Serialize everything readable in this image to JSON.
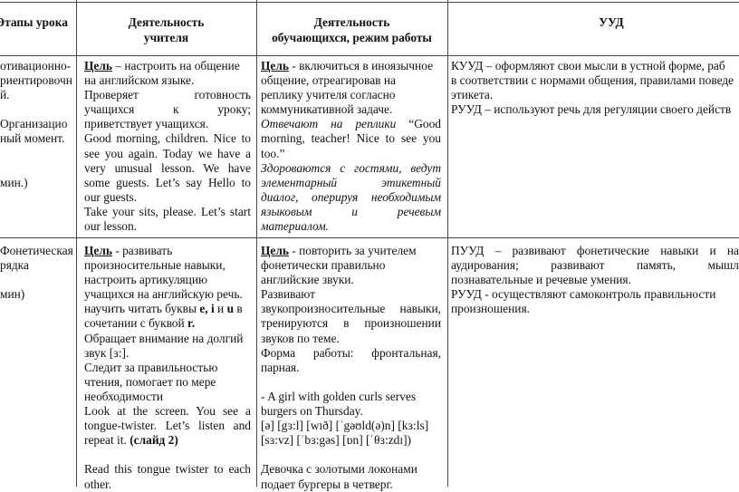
{
  "header": {
    "stage": "Этапы урока",
    "teacher": [
      "Деятельность",
      "учителя"
    ],
    "students": [
      "Деятельность",
      "обучающихся, режим работы"
    ],
    "uud": "УУД"
  },
  "rows": [
    {
      "stage": [
        {
          "r": [
            {
              "t": "отивационно-"
            }
          ]
        },
        {
          "r": [
            {
              "t": "риентировочн"
            }
          ]
        },
        {
          "r": [
            {
              "t": "й."
            }
          ]
        },
        {
          "r": [
            {
              "t": ""
            }
          ]
        },
        {
          "r": [
            {
              "t": " Организацио"
            }
          ]
        },
        {
          "r": [
            {
              "t": "ный момент."
            }
          ]
        },
        {
          "r": [
            {
              "t": ""
            }
          ]
        },
        {
          "r": [
            {
              "t": ""
            }
          ]
        },
        {
          "r": [
            {
              "t": " мин.)"
            }
          ]
        }
      ],
      "teacher": [
        {
          "r": [
            {
              "t": "Цель",
              "s": "bu"
            },
            {
              "t": " – настроить на общение"
            }
          ]
        },
        {
          "r": [
            {
              "t": "на английском языке."
            }
          ]
        },
        {
          "r": [
            {
              "t": "Проверяет готовность"
            }
          ],
          "align": "justify"
        },
        {
          "r": [
            {
              "t": "учащихся к уроку;"
            }
          ],
          "align": "justify"
        },
        {
          "r": [
            {
              "t": "приветствует учащихся."
            }
          ]
        },
        {
          "r": [
            {
              "t": "Good morning, children. Nice to"
            }
          ],
          "align": "justify"
        },
        {
          "r": [
            {
              "t": "see you again. Today we have a"
            }
          ],
          "align": "justify"
        },
        {
          "r": [
            {
              "t": "very unusual lesson. We have"
            }
          ],
          "align": "justify"
        },
        {
          "r": [
            {
              "t": "some guests. Let’s say Hello to"
            }
          ],
          "align": "justify"
        },
        {
          "r": [
            {
              "t": "our guests."
            }
          ]
        },
        {
          "r": [
            {
              "t": "Take your sits, please. Let’s start"
            }
          ],
          "align": "justify"
        },
        {
          "r": [
            {
              "t": "our lesson."
            }
          ]
        }
      ],
      "students": [
        {
          "r": [
            {
              "t": "Цель",
              "s": "bu"
            },
            {
              "t": " - включиться в иноязычное"
            }
          ]
        },
        {
          "r": [
            {
              "t": "общение, отреагировав на"
            }
          ]
        },
        {
          "r": [
            {
              "t": "реплику учителя согласно"
            }
          ]
        },
        {
          "r": [
            {
              "t": "коммуникативной задаче."
            }
          ]
        },
        {
          "r": [
            {
              "t": "Отвечают на реплики",
              "s": "i"
            },
            {
              "t": " “Good"
            }
          ],
          "align": "justify"
        },
        {
          "r": [
            {
              "t": "morning, teacher! Nice to see you"
            }
          ],
          "align": "justify"
        },
        {
          "r": [
            {
              "t": "too.”"
            }
          ]
        },
        {
          "r": [
            {
              "t": " Здороваются с гостями, ведут",
              "s": "i"
            }
          ],
          "align": "justify"
        },
        {
          "r": [
            {
              "t": "элементарный этикетный",
              "s": "i"
            }
          ],
          "align": "justify"
        },
        {
          "r": [
            {
              "t": "диалог, оперируя необходимым",
              "s": "i"
            }
          ],
          "align": "justify"
        },
        {
          "r": [
            {
              "t": "языковым и речевым",
              "s": "i"
            }
          ],
          "align": "justify"
        },
        {
          "r": [
            {
              "t": "материалом.",
              "s": "i"
            }
          ]
        }
      ],
      "uud": [
        {
          "r": [
            {
              "t": "КУУД – оформляют свои мысли в устной форме, раб"
            }
          ]
        },
        {
          "r": [
            {
              "t": "в соответствии с нормами общения, правилами поведе"
            }
          ]
        },
        {
          "r": [
            {
              "t": "этикета."
            }
          ]
        },
        {
          "r": [
            {
              "t": "РУУД – используют речь для регуляции своего действ"
            }
          ]
        }
      ]
    },
    {
      "stage": [
        {
          "r": [
            {
              "t": "Фонетическая"
            }
          ]
        },
        {
          "r": [
            {
              "t": "рядка"
            }
          ]
        },
        {
          "r": [
            {
              "t": ""
            }
          ]
        },
        {
          "r": [
            {
              "t": " мин)"
            }
          ]
        }
      ],
      "teacher": [
        {
          "r": [
            {
              "t": "Цель",
              "s": "bu"
            },
            {
              "t": " - развивать"
            }
          ]
        },
        {
          "r": [
            {
              "t": "произносительные навыки,"
            }
          ]
        },
        {
          "r": [
            {
              "t": "настроить артикуляцию"
            }
          ]
        },
        {
          "r": [
            {
              "t": "учащихся на английскую речь."
            }
          ]
        },
        {
          "r": [
            {
              "t": "научить читать буквы "
            },
            {
              "t": "e, i",
              "s": "b"
            },
            {
              "t": " и "
            },
            {
              "t": "u",
              "s": "b"
            },
            {
              "t": " в"
            }
          ]
        },
        {
          "r": [
            {
              "t": "сочетании с буквой "
            },
            {
              "t": "r.",
              "s": "b"
            }
          ]
        },
        {
          "r": [
            {
              "t": "Обращает внимание на долгий"
            }
          ]
        },
        {
          "r": [
            {
              "t": "звук [ɜ:]."
            }
          ]
        },
        {
          "r": [
            {
              "t": "Следит за правильностью"
            }
          ]
        },
        {
          "r": [
            {
              "t": "чтения, помогает по мере"
            }
          ]
        },
        {
          "r": [
            {
              "t": "необходимости"
            }
          ]
        },
        {
          "r": [
            {
              "t": "Look at the screen. You see a"
            }
          ],
          "align": "justify"
        },
        {
          "r": [
            {
              "t": "tongue-twister. Let’s listen and"
            }
          ],
          "align": "justify"
        },
        {
          "r": [
            {
              "t": "repeat it. "
            },
            {
              "t": "(слайд 2)",
              "s": "b"
            }
          ]
        },
        {
          "r": [
            {
              "t": ""
            }
          ]
        },
        {
          "r": [
            {
              "t": " Read this tongue twister to each"
            }
          ],
          "align": "justify"
        },
        {
          "r": [
            {
              "t": " other."
            }
          ]
        }
      ],
      "students": [
        {
          "r": [
            {
              "t": "Цель",
              "s": "bu"
            },
            {
              "t": " - повторить за учителем"
            }
          ]
        },
        {
          "r": [
            {
              "t": "фонетически правильно"
            }
          ]
        },
        {
          "r": [
            {
              "t": "английские звуки."
            }
          ]
        },
        {
          "r": [
            {
              "t": "Развивают"
            }
          ]
        },
        {
          "r": [
            {
              "t": "звукопроизносительные навыки,"
            }
          ],
          "align": "justify"
        },
        {
          "r": [
            {
              "t": "тренируются в произношении"
            }
          ],
          "align": "justify"
        },
        {
          "r": [
            {
              "t": "звуков по теме."
            }
          ]
        },
        {
          "r": [
            {
              "t": "Форма работы: фронтальная,"
            }
          ],
          "align": "justify"
        },
        {
          "r": [
            {
              "t": "парная."
            }
          ]
        },
        {
          "r": [
            {
              "t": ""
            }
          ]
        },
        {
          "r": [
            {
              "t": "-  A girl with golden curls serves"
            }
          ]
        },
        {
          "r": [
            {
              "t": "burgers on Thursday."
            }
          ]
        },
        {
          "r": [
            {
              "t": "[ə] [gɜ:l] [wɪð] [ˈgəʊld(ə)n] [kɜ:ls]"
            }
          ]
        },
        {
          "r": [
            {
              "t": "[sɜ:vz] [ˈbɜ:gəs] [ɒn] [ˈθɜ:zdɪ])"
            }
          ]
        },
        {
          "r": [
            {
              "t": ""
            }
          ]
        },
        {
          "r": [
            {
              "t": "Девочка с золотыми локонами"
            }
          ]
        },
        {
          "r": [
            {
              "t": "подает бургеры в четверг."
            }
          ]
        }
      ],
      "uud": [
        {
          "r": [
            {
              "t": "ПУУД – развивают фонетические навыки и на"
            }
          ],
          "align": "justify"
        },
        {
          "r": [
            {
              "t": "аудирования; развивают память, мышл"
            }
          ],
          "align": "justify"
        },
        {
          "r": [
            {
              "t": "познавательные и речевые умения."
            }
          ]
        },
        {
          "r": [
            {
              "t": "РУУД - осуществляют самоконтроль правильности"
            }
          ]
        },
        {
          "r": [
            {
              "t": "произношения."
            }
          ]
        }
      ]
    }
  ]
}
